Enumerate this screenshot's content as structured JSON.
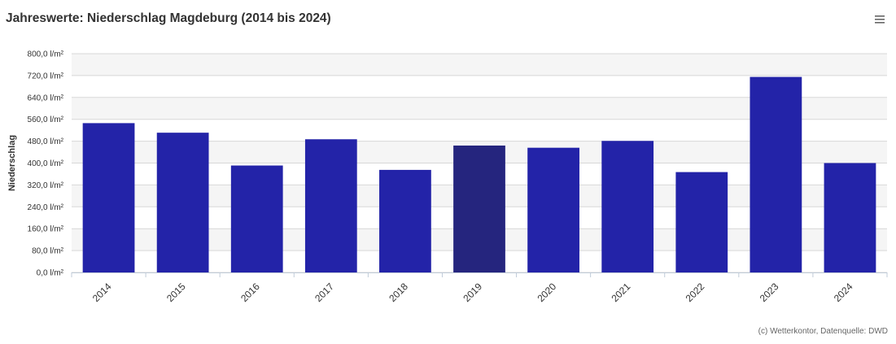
{
  "header": {
    "title": "Jahreswerte: Niederschlag Magdeburg (2014 bis 2024)",
    "menu_icon": "hamburger-menu-icon"
  },
  "footer": {
    "credits": "(c) Wetterkontor, Datenquelle: DWD"
  },
  "colors": {
    "bar": "#2323a8",
    "bar_highlight": "#25257e",
    "band": "#f5f5f5",
    "grid": "#d8d8d8",
    "text": "#333333"
  },
  "chart_data": {
    "type": "bar",
    "title": "Jahreswerte: Niederschlag Magdeburg (2014 bis 2024)",
    "xlabel": "",
    "ylabel": "Niederschlag",
    "ylim": [
      0,
      800
    ],
    "y_ticks": [
      0,
      80,
      160,
      240,
      320,
      400,
      480,
      560,
      640,
      720,
      800
    ],
    "y_tick_labels": [
      "0,0 l/m²",
      "80,0 l/m²",
      "160,0 l/m²",
      "240,0 l/m²",
      "320,0 l/m²",
      "400,0 l/m²",
      "480,0 l/m²",
      "560,0 l/m²",
      "640,0 l/m²",
      "720,0 l/m²",
      "800,0 l/m²"
    ],
    "categories": [
      "2014",
      "2015",
      "2016",
      "2017",
      "2018",
      "2019",
      "2020",
      "2021",
      "2022",
      "2023",
      "2024"
    ],
    "values": [
      546,
      511,
      391,
      487,
      375,
      464,
      456,
      481,
      367,
      715,
      400
    ],
    "highlighted_category": "2019",
    "grid": true,
    "legend": "none"
  }
}
